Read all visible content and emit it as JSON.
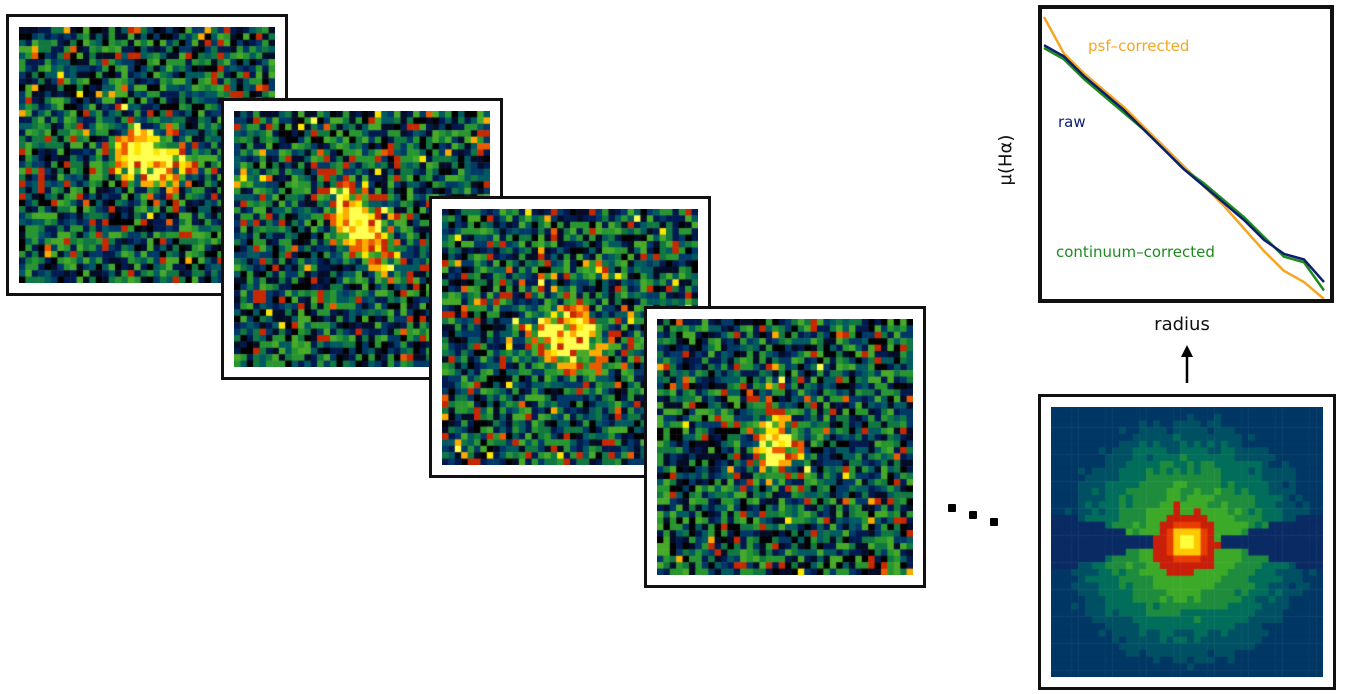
{
  "maps": [
    {
      "name": "map-1"
    },
    {
      "name": "map-2"
    },
    {
      "name": "map-3"
    },
    {
      "name": "map-4"
    },
    {
      "name": "stacked-map"
    }
  ],
  "ellipsis_icon": "ellipsis-icon",
  "arrow_icon": "arrow-up-icon",
  "chart_data": {
    "type": "line",
    "title": "",
    "xlabel": "radius",
    "ylabel": "μ(Hα)",
    "x": [
      0,
      1,
      2,
      3,
      4,
      5,
      6,
      7,
      8,
      9,
      10,
      11,
      12,
      13,
      14
    ],
    "xlim": [
      0,
      14
    ],
    "ylim": [
      0,
      10
    ],
    "grid": false,
    "series": [
      {
        "name": "psf–corrected",
        "color": "#f5a623",
        "values": [
          10.0,
          8.7,
          8.0,
          7.4,
          6.8,
          6.1,
          5.4,
          4.7,
          4.0,
          3.3,
          2.5,
          1.7,
          1.0,
          0.6,
          0.0
        ]
      },
      {
        "name": "raw",
        "color": "#0b1f6e",
        "values": [
          9.0,
          8.6,
          7.9,
          7.3,
          6.7,
          6.0,
          5.3,
          4.6,
          4.0,
          3.4,
          2.8,
          2.1,
          1.6,
          1.4,
          0.6
        ]
      },
      {
        "name": "continuum–corrected",
        "color": "#1e8a1e",
        "values": [
          8.9,
          8.5,
          7.8,
          7.2,
          6.6,
          6.0,
          5.3,
          4.6,
          4.1,
          3.5,
          2.9,
          2.2,
          1.5,
          1.3,
          0.3
        ]
      }
    ]
  }
}
